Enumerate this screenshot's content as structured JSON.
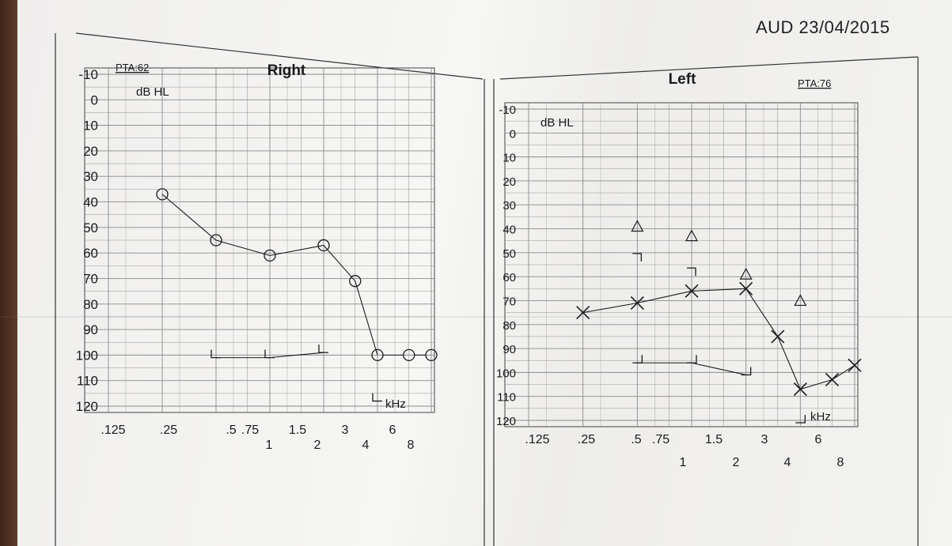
{
  "header": {
    "date_stamp": "AUD 23/04/2015"
  },
  "colors": {
    "ink": "#1a1a1a",
    "grid": "#8a8a8a",
    "paper": "#f3f3f1"
  },
  "chart_data": [
    {
      "type": "line",
      "title": "Right",
      "pta_label": "PTA:62",
      "ylabel": "dB HL",
      "xlabel": "kHz",
      "x_ticks_upper": [
        ".125",
        ".25",
        ".5",
        ".75",
        "1.5",
        "3",
        "6"
      ],
      "x_ticks_lower": [
        "1",
        "2",
        "4",
        "8"
      ],
      "y_ticks": [
        "-10",
        "0",
        "10",
        "20",
        "30",
        "40",
        "50",
        "60",
        "70",
        "80",
        "90",
        "100",
        "110",
        "120"
      ],
      "ylim": [
        -10,
        120
      ],
      "y_inverted": true,
      "x_scale": "log-octave",
      "grid": true,
      "series": [
        {
          "symbol": "circle",
          "x": [
            0.25,
            0.5,
            1,
            2,
            3,
            4,
            6,
            8
          ],
          "y": [
            37,
            55,
            61,
            57,
            71,
            100,
            100,
            100
          ],
          "connected_until_index": 5
        },
        {
          "symbol": "L-bracket",
          "x": [
            0.5,
            1,
            2,
            4
          ],
          "y": [
            101,
            101,
            99,
            118
          ]
        }
      ]
    },
    {
      "type": "line",
      "title": "Left",
      "pta_label": "PTA:76",
      "ylabel": "dB HL",
      "xlabel": "kHz",
      "x_ticks_upper": [
        ".125",
        ".25",
        ".5",
        ".75",
        "1.5",
        "3",
        "6"
      ],
      "x_ticks_lower": [
        "1",
        "2",
        "4",
        "8"
      ],
      "y_ticks": [
        "-10",
        "0",
        "10",
        "20",
        "30",
        "40",
        "50",
        "60",
        "70",
        "80",
        "90",
        "100",
        "110",
        "120"
      ],
      "ylim": [
        -10,
        120
      ],
      "y_inverted": true,
      "x_scale": "log-octave",
      "grid": true,
      "series": [
        {
          "symbol": "x",
          "x": [
            0.25,
            0.5,
            1,
            2,
            3,
            4,
            6,
            8
          ],
          "y": [
            75,
            71,
            66,
            65,
            85,
            107,
            103,
            97
          ]
        },
        {
          "symbol": "triangle",
          "x": [
            0.5,
            1,
            2,
            4
          ],
          "y": [
            39,
            43,
            59,
            70
          ]
        },
        {
          "symbol": "reverse-bracket",
          "x": [
            0.5,
            1
          ],
          "y": [
            52,
            58
          ]
        },
        {
          "symbol": "J-bracket",
          "x": [
            0.5,
            1,
            2,
            4
          ],
          "y": [
            96,
            96,
            101,
            121
          ]
        }
      ]
    }
  ]
}
